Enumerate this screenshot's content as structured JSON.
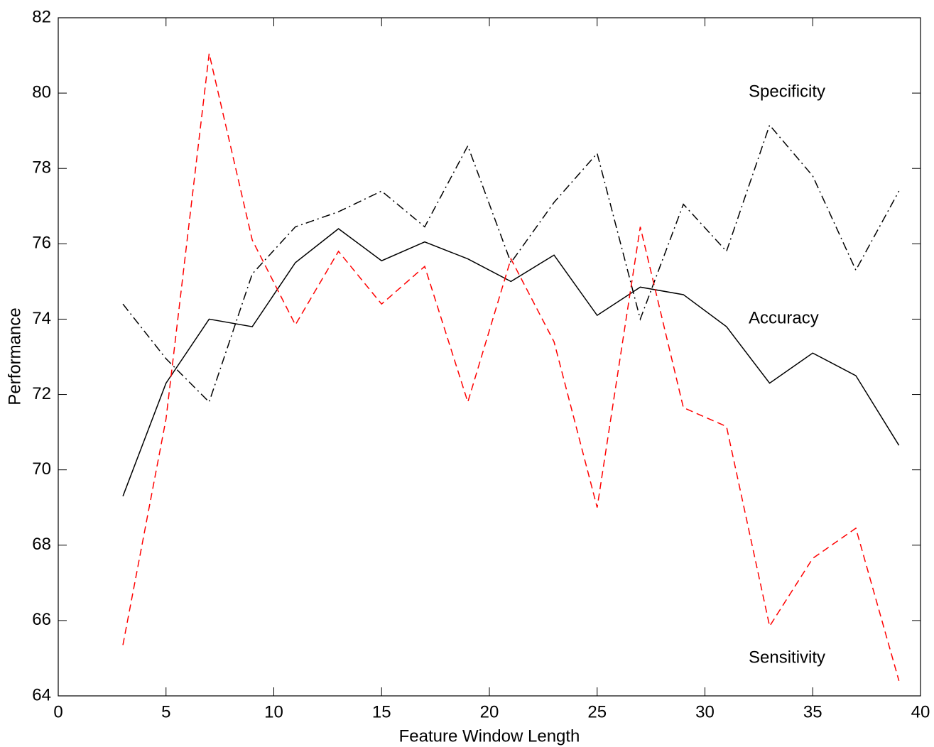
{
  "chart_data": {
    "type": "line",
    "xlabel": "Feature Window Length",
    "ylabel": "Performance",
    "x": [
      3,
      5,
      7,
      9,
      11,
      13,
      15,
      17,
      19,
      21,
      23,
      25,
      27,
      29,
      31,
      33,
      35,
      37,
      39
    ],
    "series": [
      {
        "name": "Accuracy",
        "color": "#000000",
        "linestyle": "solid",
        "values": [
          69.3,
          72.3,
          74.0,
          73.8,
          75.5,
          76.4,
          75.55,
          76.05,
          75.6,
          75.0,
          75.7,
          74.1,
          74.85,
          74.65,
          73.8,
          72.3,
          73.1,
          72.5,
          70.65
        ]
      },
      {
        "name": "Specificity",
        "color": "#000000",
        "linestyle": "dashdot",
        "values": [
          74.4,
          72.95,
          71.8,
          75.2,
          76.45,
          76.85,
          77.4,
          76.45,
          78.6,
          75.5,
          77.1,
          78.4,
          74.0,
          77.05,
          75.8,
          79.15,
          77.8,
          75.3,
          77.4
        ]
      },
      {
        "name": "Sensitivity",
        "color": "#ff0000",
        "linestyle": "dashed",
        "values": [
          65.35,
          71.35,
          81.05,
          76.1,
          73.85,
          75.8,
          74.4,
          75.4,
          71.8,
          75.6,
          73.4,
          69.0,
          76.45,
          71.65,
          71.15,
          65.85,
          67.65,
          68.45,
          64.4
        ]
      }
    ],
    "xlim": [
      0,
      40
    ],
    "xticks": [
      0,
      5,
      10,
      15,
      20,
      25,
      30,
      35,
      40
    ],
    "ylim": [
      64,
      82
    ],
    "yticks": [
      64,
      66,
      68,
      70,
      72,
      74,
      76,
      78,
      80,
      82
    ],
    "grid": false
  }
}
